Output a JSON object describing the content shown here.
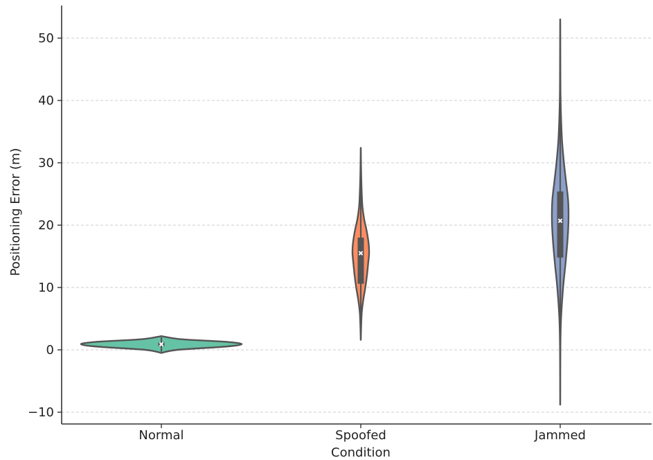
{
  "chart_data": {
    "type": "violin",
    "title": "",
    "xlabel": "Condition",
    "ylabel": "Positioning Error (m)",
    "ylim": [
      -12,
      55
    ],
    "yticks": [
      -10,
      0,
      10,
      20,
      30,
      40,
      50
    ],
    "ytick_labels": [
      "−10",
      "0",
      "10",
      "20",
      "30",
      "40",
      "50"
    ],
    "grid": "y-dashed",
    "categories": [
      "Normal",
      "Spoofed",
      "Jammed"
    ],
    "series": [
      {
        "category": "Normal",
        "color": "#66c2a5",
        "min": -0.5,
        "max": 2.2,
        "q1": 0.6,
        "median": 0.9,
        "q3": 1.2,
        "whisker_low": -0.3,
        "whisker_high": 2.0,
        "density": [
          [
            -0.5,
            0.0
          ],
          [
            0.0,
            0.2
          ],
          [
            0.5,
            0.78
          ],
          [
            0.9,
            1.0
          ],
          [
            1.3,
            0.8
          ],
          [
            1.7,
            0.25
          ],
          [
            2.2,
            0.0
          ]
        ]
      },
      {
        "category": "Spoofed",
        "color": "#fc8d62",
        "min": 1.6,
        "max": 32.4,
        "q1": 10.6,
        "median": 15.5,
        "q3": 18.0,
        "whisker_low": 1.6,
        "whisker_high": 32.4,
        "density": [
          [
            1.6,
            0.0
          ],
          [
            4.0,
            0.05
          ],
          [
            6.0,
            0.12
          ],
          [
            8.0,
            0.3
          ],
          [
            10.0,
            0.55
          ],
          [
            12.0,
            0.75
          ],
          [
            14.0,
            0.9
          ],
          [
            15.5,
            1.0
          ],
          [
            17.0,
            0.95
          ],
          [
            19.0,
            0.72
          ],
          [
            21.0,
            0.4
          ],
          [
            23.0,
            0.2
          ],
          [
            25.0,
            0.12
          ],
          [
            28.0,
            0.05
          ],
          [
            32.4,
            0.0
          ]
        ]
      },
      {
        "category": "Jammed",
        "color": "#8da0cb",
        "min": -8.8,
        "max": 53.0,
        "q1": 14.8,
        "median": 20.7,
        "q3": 25.4,
        "whisker_low": -8.8,
        "whisker_high": 53.0,
        "density": [
          [
            -8.8,
            0.0
          ],
          [
            0.0,
            0.02
          ],
          [
            5.0,
            0.1
          ],
          [
            10.0,
            0.35
          ],
          [
            14.0,
            0.65
          ],
          [
            18.0,
            0.9
          ],
          [
            21.0,
            1.0
          ],
          [
            24.0,
            0.95
          ],
          [
            27.0,
            0.7
          ],
          [
            30.0,
            0.45
          ],
          [
            34.0,
            0.2
          ],
          [
            40.0,
            0.05
          ],
          [
            45.0,
            0.02
          ],
          [
            53.0,
            0.0
          ]
        ]
      }
    ]
  }
}
